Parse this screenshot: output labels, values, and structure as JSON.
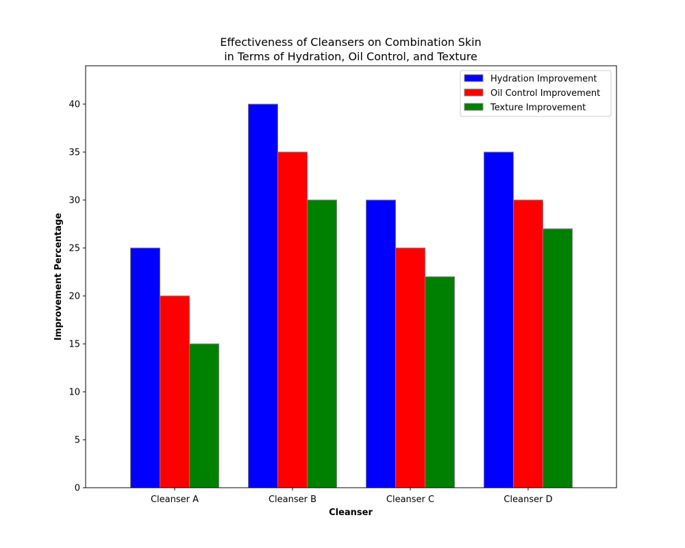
{
  "chart_data": {
    "type": "bar",
    "title_line1": "Effectiveness of Cleansers on Combination Skin",
    "title_line2": "in Terms of Hydration, Oil Control, and Texture",
    "xlabel": "Cleanser",
    "ylabel": "Improvement Percentage",
    "categories": [
      "Cleanser A",
      "Cleanser B",
      "Cleanser C",
      "Cleanser D"
    ],
    "series": [
      {
        "name": "Hydration Improvement",
        "values": [
          25,
          40,
          30,
          35
        ],
        "color": "#0000ff"
      },
      {
        "name": "Oil Control Improvement",
        "values": [
          20,
          35,
          25,
          30
        ],
        "color": "#ff0000"
      },
      {
        "name": "Texture Improvement",
        "values": [
          15,
          30,
          22,
          27
        ],
        "color": "#008000"
      }
    ],
    "ylim": [
      0,
      44
    ],
    "yticks": [
      0,
      5,
      10,
      15,
      20,
      25,
      30,
      35,
      40
    ],
    "grid": false,
    "legend_position": "top-right",
    "bar_edge_color": "#808080"
  }
}
